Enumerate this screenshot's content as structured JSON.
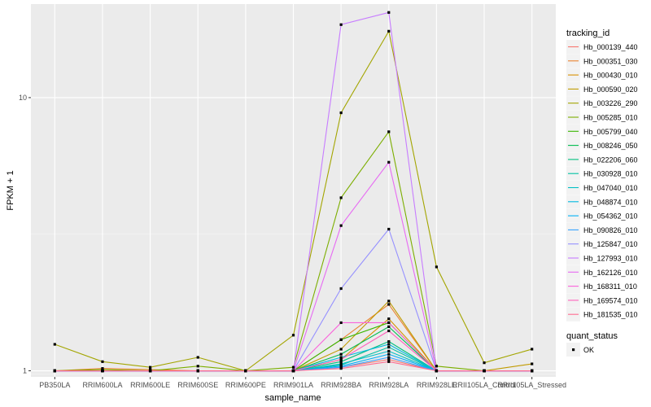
{
  "chart_data": {
    "type": "line",
    "xlabel": "sample_name",
    "ylabel": "FPKM + 1",
    "y_scale": "log10",
    "ylim": [
      0.95,
      22
    ],
    "y_ticks": [
      1,
      10
    ],
    "y_tick_labels": [
      "1",
      "10"
    ],
    "grid": true,
    "legend_position": "right",
    "categories": [
      "PB350LA",
      "RRIM600LA",
      "RRIM600LE",
      "RRIM600SE",
      "RRIM600PE",
      "RRIM901LA",
      "RRIM928BA",
      "RRIM928LA",
      "RRIM928LE",
      "RRII105LA_Control",
      "RRII105LA_Stressed"
    ],
    "legend_color_title": "tracking_id",
    "legend_shape_title": "quant_status",
    "legend_shape_label": "OK",
    "series": [
      {
        "name": "Hb_000139_440",
        "color": "#F8766D",
        "values": [
          1.0,
          1.0,
          1.0,
          1.0,
          1.0,
          1.0,
          1.03,
          1.1,
          1.0,
          1.0,
          1.0
        ]
      },
      {
        "name": "Hb_000351_030",
        "color": "#EA8331",
        "values": [
          1.0,
          1.02,
          1.01,
          1.0,
          1.0,
          1.0,
          1.3,
          1.75,
          1.0,
          1.0,
          1.0
        ]
      },
      {
        "name": "Hb_000430_010",
        "color": "#D89000",
        "values": [
          1.0,
          1.0,
          1.0,
          1.0,
          1.0,
          1.0,
          1.1,
          1.55,
          1.0,
          1.0,
          1.0
        ]
      },
      {
        "name": "Hb_000590_020",
        "color": "#C09B00",
        "values": [
          1.0,
          1.0,
          1.0,
          1.0,
          1.0,
          1.0,
          1.2,
          1.8,
          1.0,
          1.0,
          1.06
        ]
      },
      {
        "name": "Hb_003226_290",
        "color": "#A3A500",
        "values": [
          1.25,
          1.08,
          1.03,
          1.12,
          1.0,
          1.35,
          8.8,
          17.5,
          2.4,
          1.07,
          1.2
        ]
      },
      {
        "name": "Hb_005285_010",
        "color": "#7CAE00",
        "values": [
          1.0,
          1.01,
          1.0,
          1.04,
          1.0,
          1.03,
          4.3,
          7.5,
          1.04,
          1.0,
          1.0
        ]
      },
      {
        "name": "Hb_005799_040",
        "color": "#39B600",
        "values": [
          1.0,
          1.0,
          1.0,
          1.0,
          1.0,
          1.0,
          1.3,
          1.5,
          1.0,
          1.0,
          1.0
        ]
      },
      {
        "name": "Hb_008246_050",
        "color": "#00BB4E",
        "values": [
          1.0,
          1.0,
          1.0,
          1.0,
          1.0,
          1.0,
          1.15,
          1.45,
          1.0,
          1.0,
          1.0
        ]
      },
      {
        "name": "Hb_022206_060",
        "color": "#00BF7D",
        "values": [
          1.0,
          1.0,
          1.0,
          1.0,
          1.0,
          1.0,
          1.08,
          1.28,
          1.0,
          1.0,
          1.0
        ]
      },
      {
        "name": "Hb_030928_010",
        "color": "#00C1A3",
        "values": [
          1.0,
          1.0,
          1.0,
          1.0,
          1.0,
          1.0,
          1.05,
          1.22,
          1.0,
          1.0,
          1.0
        ]
      },
      {
        "name": "Hb_047040_010",
        "color": "#00BFC4",
        "values": [
          1.0,
          1.0,
          1.0,
          1.0,
          1.0,
          1.0,
          1.06,
          1.18,
          1.0,
          1.0,
          1.0
        ]
      },
      {
        "name": "Hb_048874_010",
        "color": "#00BAE0",
        "values": [
          1.0,
          1.0,
          1.0,
          1.0,
          1.0,
          1.0,
          1.12,
          1.25,
          1.0,
          1.0,
          1.0
        ]
      },
      {
        "name": "Hb_054362_010",
        "color": "#00B0F6",
        "values": [
          1.0,
          1.0,
          1.0,
          1.0,
          1.0,
          1.0,
          1.04,
          1.15,
          1.0,
          1.0,
          1.0
        ]
      },
      {
        "name": "Hb_090826_010",
        "color": "#35A2FF",
        "values": [
          1.0,
          1.0,
          1.0,
          1.0,
          1.0,
          1.0,
          1.03,
          1.12,
          1.0,
          1.0,
          1.0
        ]
      },
      {
        "name": "Hb_125847_010",
        "color": "#9590FF",
        "values": [
          1.0,
          1.0,
          1.0,
          1.0,
          1.0,
          1.0,
          2.0,
          3.3,
          1.0,
          1.0,
          1.0
        ]
      },
      {
        "name": "Hb_127993_010",
        "color": "#C77CFF",
        "values": [
          1.0,
          1.0,
          1.0,
          1.0,
          1.0,
          1.0,
          18.5,
          20.5,
          1.0,
          1.0,
          1.0
        ]
      },
      {
        "name": "Hb_162126_010",
        "color": "#E76BF3",
        "values": [
          1.0,
          1.0,
          1.0,
          1.0,
          1.0,
          1.0,
          3.4,
          5.8,
          1.0,
          1.0,
          1.0
        ]
      },
      {
        "name": "Hb_168311_010",
        "color": "#FA62DB",
        "values": [
          1.0,
          1.0,
          1.0,
          1.0,
          1.0,
          1.0,
          1.5,
          1.5,
          1.0,
          1.0,
          1.0
        ]
      },
      {
        "name": "Hb_169574_010",
        "color": "#FF62BC",
        "values": [
          1.0,
          1.0,
          1.0,
          1.0,
          1.0,
          1.0,
          1.1,
          1.4,
          1.0,
          1.0,
          1.0
        ]
      },
      {
        "name": "Hb_181535_010",
        "color": "#FF6C91",
        "values": [
          1.0,
          1.0,
          1.0,
          1.0,
          1.0,
          1.0,
          1.02,
          1.08,
          1.0,
          1.0,
          1.0
        ]
      }
    ]
  }
}
